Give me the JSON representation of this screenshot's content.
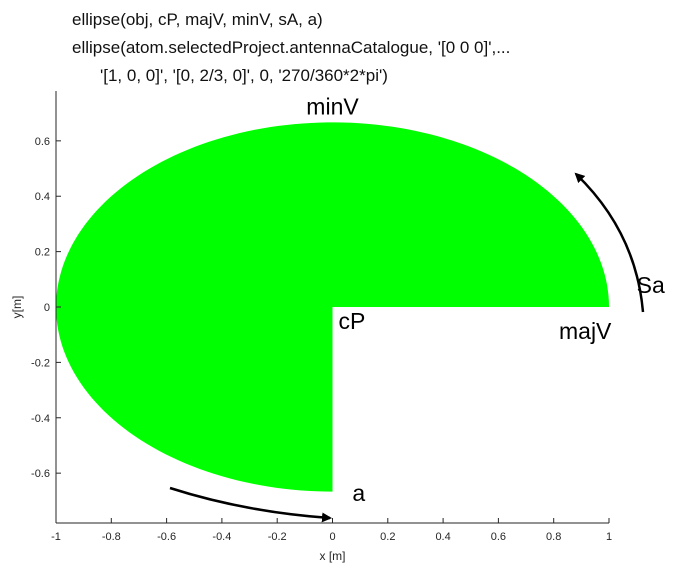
{
  "code_lines": [
    "ellipse(obj, cP, majV, minV, sA, a)",
    "ellipse(atom.selectedProject.antennaCatalogue, '[0 0 0]',...",
    "'[1, 0, 0]', '[0, 2/3, 0]', 0, '270/360*2*pi')"
  ],
  "chart_data": {
    "type": "area",
    "shape": "elliptical sector",
    "center": [
      0,
      0
    ],
    "semi_major_axis": 1,
    "semi_minor_axis": 0.6667,
    "start_angle_deg": 0,
    "sweep_angle_deg": 270,
    "fill_color": "#00ff00",
    "xlabel": "x [m]",
    "ylabel": "y[m]",
    "xlim": [
      -1,
      1
    ],
    "ylim": [
      -0.78,
      0.78
    ],
    "xticks": [
      -1,
      -0.8,
      -0.6,
      -0.4,
      -0.2,
      0,
      0.2,
      0.4,
      0.6,
      0.8,
      1
    ],
    "xtick_labels": [
      "-1",
      "-0.8",
      "-0.6",
      "-0.4",
      "-0.2",
      "0",
      "0.2",
      "0.4",
      "0.6",
      "0.8",
      "1"
    ],
    "yticks": [
      -0.6,
      -0.4,
      -0.2,
      0,
      0.2,
      0.4,
      0.6
    ],
    "ytick_labels": [
      "-0.6",
      "-0.4",
      "-0.2",
      "0",
      "0.2",
      "0.4",
      "0.6"
    ],
    "grid": false,
    "annotations": [
      {
        "text": "minV",
        "x": 0,
        "y": 0.6667
      },
      {
        "text": "cP",
        "x": 0,
        "y": 0
      },
      {
        "text": "majV",
        "x": 1,
        "y": 0
      },
      {
        "text": "Sa",
        "x": 1.1,
        "y": 0.05
      },
      {
        "text": "a",
        "x": 0.05,
        "y": -0.7
      }
    ]
  }
}
